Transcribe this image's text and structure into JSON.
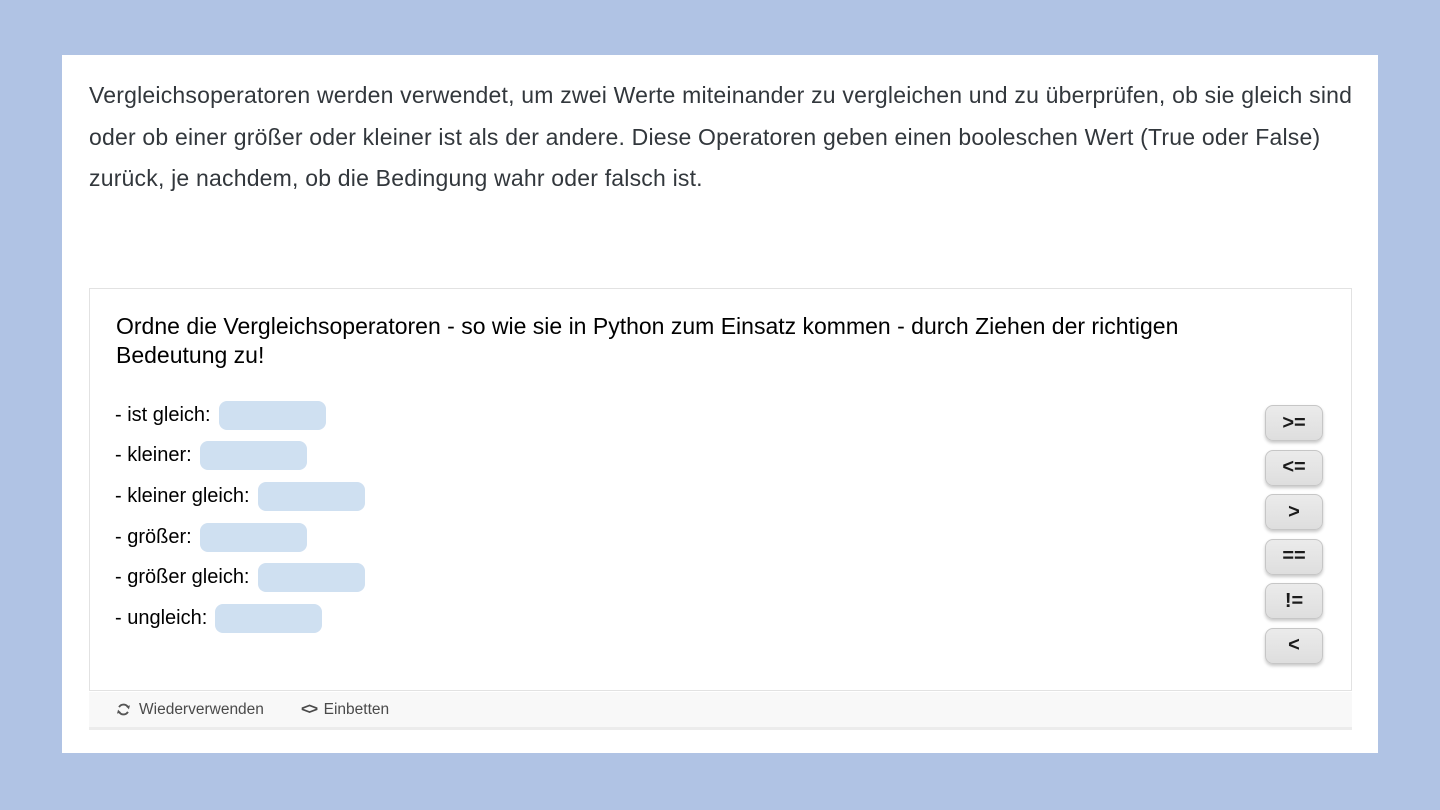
{
  "page": {
    "background_color": "#b0c3e4",
    "intro_paragraph": "Vergleichsoperatoren werden verwendet, um zwei Werte miteinander zu vergleichen und zu überprüfen, ob sie gleich sind oder ob einer größer oder kleiner ist als der andere. Diese Operatoren geben einen booleschen Wert (True oder False) zurück, je nachdem, ob die Bedingung wahr oder falsch ist."
  },
  "widget": {
    "title": "Ordne die Vergleichsoperatoren - so wie sie in Python zum Einsatz kommen - durch Ziehen der richtigen Bedeutung zu!",
    "items": [
      {
        "label": "- ist gleich:"
      },
      {
        "label": "- kleiner:"
      },
      {
        "label": "- kleiner gleich:"
      },
      {
        "label": "- größer:"
      },
      {
        "label": "- größer gleich:"
      },
      {
        "label": "- ungleich:"
      }
    ],
    "operators": [
      ">=",
      "<=",
      ">",
      "==",
      "!=",
      "<"
    ],
    "dropzone_color": "#cfe0f1",
    "footer": {
      "reuse_label": "Wiederverwenden",
      "embed_icon_text": "<>",
      "embed_label": "Einbetten"
    }
  }
}
